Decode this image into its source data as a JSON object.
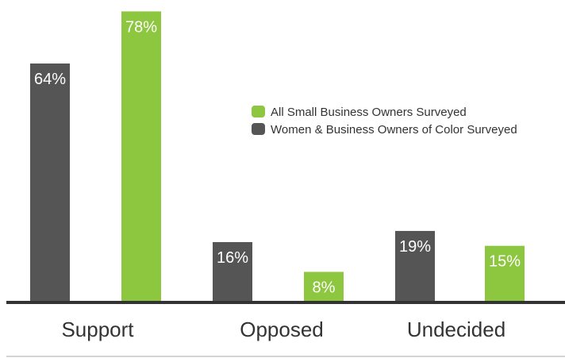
{
  "chart_data": {
    "type": "bar",
    "title": "",
    "xlabel": "",
    "ylabel": "",
    "categories": [
      "Support",
      "Opposed",
      "Undecided"
    ],
    "series": [
      {
        "name": "Women & Business Owners of Color Surveyed",
        "values": [
          64,
          16,
          19
        ],
        "labels": [
          "64%",
          "16%",
          "19%"
        ],
        "color": "#555555"
      },
      {
        "name": "All Small Business Owners Surveyed",
        "values": [
          78,
          8,
          15
        ],
        "labels": [
          "78%",
          "8%",
          "15%"
        ],
        "color": "#8dc63f"
      }
    ],
    "legend_order": [
      1,
      0
    ],
    "legend_position": "right",
    "ylim": [
      0,
      80
    ],
    "grid": false
  }
}
